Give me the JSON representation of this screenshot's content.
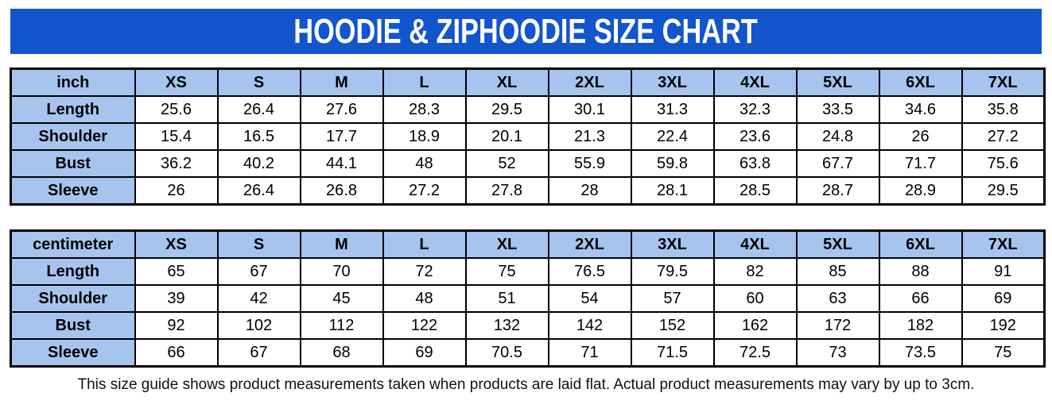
{
  "title": "HOODIE & ZIPHOODIE SIZE CHART",
  "colors": {
    "banner_bg": "#1255cc",
    "banner_text": "#ffffff",
    "header_cell_bg": "#a7c4ee",
    "table_border": "#000000"
  },
  "chart_data": [
    {
      "type": "table",
      "unit_label": "inch",
      "columns": [
        "XS",
        "S",
        "M",
        "L",
        "XL",
        "2XL",
        "3XL",
        "4XL",
        "5XL",
        "6XL",
        "7XL"
      ],
      "rows": [
        {
          "label": "Length",
          "values": [
            "25.6",
            "26.4",
            "27.6",
            "28.3",
            "29.5",
            "30.1",
            "31.3",
            "32.3",
            "33.5",
            "34.6",
            "35.8"
          ]
        },
        {
          "label": "Shoulder",
          "values": [
            "15.4",
            "16.5",
            "17.7",
            "18.9",
            "20.1",
            "21.3",
            "22.4",
            "23.6",
            "24.8",
            "26",
            "27.2"
          ]
        },
        {
          "label": "Bust",
          "values": [
            "36.2",
            "40.2",
            "44.1",
            "48",
            "52",
            "55.9",
            "59.8",
            "63.8",
            "67.7",
            "71.7",
            "75.6"
          ]
        },
        {
          "label": "Sleeve",
          "values": [
            "26",
            "26.4",
            "26.8",
            "27.2",
            "27.8",
            "28",
            "28.1",
            "28.5",
            "28.7",
            "28.9",
            "29.5"
          ]
        }
      ]
    },
    {
      "type": "table",
      "unit_label": "centimeter",
      "columns": [
        "XS",
        "S",
        "M",
        "L",
        "XL",
        "2XL",
        "3XL",
        "4XL",
        "5XL",
        "6XL",
        "7XL"
      ],
      "rows": [
        {
          "label": "Length",
          "values": [
            "65",
            "67",
            "70",
            "72",
            "75",
            "76.5",
            "79.5",
            "82",
            "85",
            "88",
            "91"
          ]
        },
        {
          "label": "Shoulder",
          "values": [
            "39",
            "42",
            "45",
            "48",
            "51",
            "54",
            "57",
            "60",
            "63",
            "66",
            "69"
          ]
        },
        {
          "label": "Bust",
          "values": [
            "92",
            "102",
            "112",
            "122",
            "132",
            "142",
            "152",
            "162",
            "172",
            "182",
            "192"
          ]
        },
        {
          "label": "Sleeve",
          "values": [
            "66",
            "67",
            "68",
            "69",
            "70.5",
            "71",
            "71.5",
            "72.5",
            "73",
            "73.5",
            "75"
          ]
        }
      ]
    }
  ],
  "footer_note": "This size guide shows product measurements taken when products are laid flat. Actual product measurements may vary by up to 3cm."
}
